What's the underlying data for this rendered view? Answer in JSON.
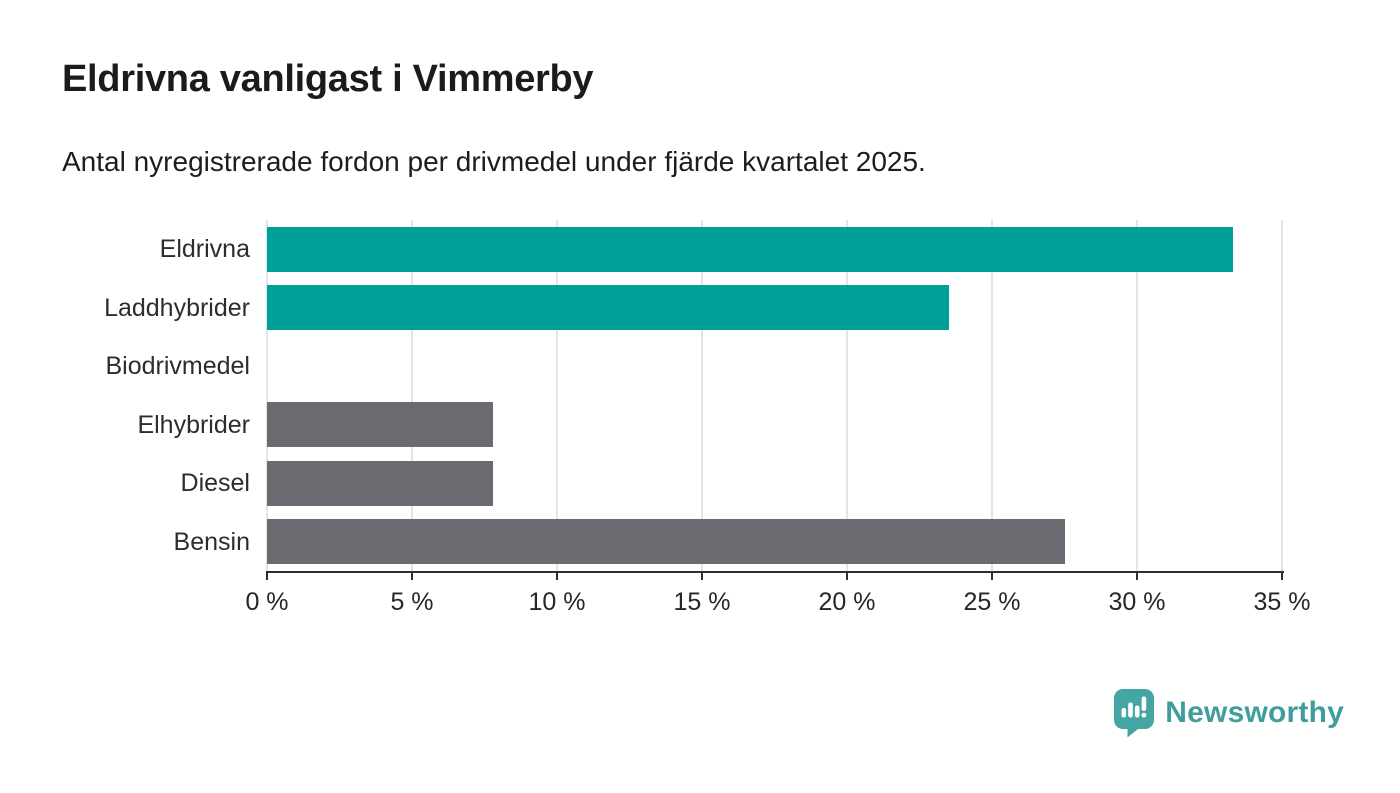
{
  "header": {
    "title": "Eldrivna vanligast i Vimmerby",
    "subtitle": "Antal nyregistrerade fordon per drivmedel under fjärde kvartalet 2025."
  },
  "chart_data": {
    "type": "bar",
    "orientation": "horizontal",
    "title": "Eldrivna vanligast i Vimmerby",
    "subtitle": "Antal nyregistrerade fordon per drivmedel under fjärde kvartalet 2025.",
    "categories": [
      "Eldrivna",
      "Laddhybrider",
      "Biodrivmedel",
      "Elhybrider",
      "Diesel",
      "Bensin"
    ],
    "values": [
      33.3,
      23.5,
      0,
      7.8,
      7.8,
      27.5
    ],
    "unit": "%",
    "bar_colors": [
      "#00a09a",
      "#00a09a",
      "#6a6a70",
      "#6a6a70",
      "#6a6a70",
      "#6a6a70"
    ],
    "highlight_color": "#00a09a",
    "default_color": "#6a6a70",
    "xlim": [
      0,
      35
    ],
    "x_ticks": [
      0,
      5,
      10,
      15,
      20,
      25,
      30,
      35
    ],
    "x_tick_labels": [
      "0 %",
      "5 %",
      "10 %",
      "15 %",
      "20 %",
      "25 %",
      "30 %",
      "35 %"
    ],
    "grid": true,
    "legend": false,
    "gridline_color": "#e4e4e4",
    "axis_color": "#2f2f2f"
  },
  "branding": {
    "logo_text": "Newsworthy",
    "logo_text_color": "#3f9e9c",
    "logo_icon_color": "#44a5a3",
    "logo_icon": "newsworthy-chart-bubble-icon"
  }
}
